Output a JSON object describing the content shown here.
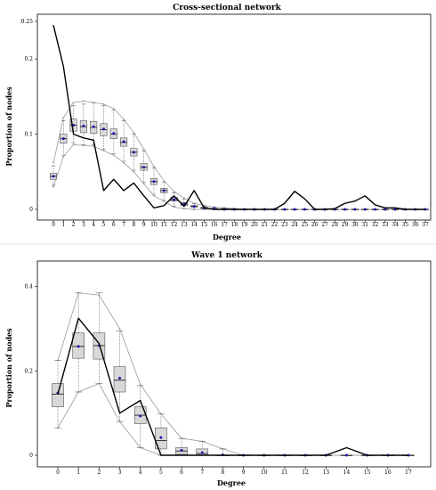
{
  "chart_data": [
    {
      "type": "box",
      "title": "Cross-sectional network",
      "xlabel": "Degree",
      "ylabel": "Proportion of nodes",
      "ylim": [
        0,
        0.25
      ],
      "yticks": [
        0,
        0.1,
        0.2,
        0.25
      ],
      "ytick_labels": [
        "0",
        "0.1",
        "0.2",
        "0.25"
      ],
      "categories": [
        "0",
        "1",
        "2",
        "3",
        "4",
        "5",
        "6",
        "7",
        "8",
        "9",
        "10",
        "11",
        "12",
        "13",
        "14",
        "15",
        "16",
        "17",
        "18",
        "19",
        "20",
        "21",
        "22",
        "23",
        "24",
        "25",
        "26",
        "27",
        "28",
        "29",
        "30",
        "31",
        "32",
        "33",
        "34",
        "35",
        "36",
        "37"
      ],
      "boxes": [
        {
          "q1": 0.04,
          "median": 0.044,
          "q3": 0.048,
          "mean": 0.044,
          "lo": 0.032,
          "hi": 0.058
        },
        {
          "q1": 0.088,
          "median": 0.094,
          "q3": 0.1,
          "mean": 0.094,
          "lo": 0.072,
          "hi": 0.118
        },
        {
          "q1": 0.104,
          "median": 0.112,
          "q3": 0.12,
          "mean": 0.112,
          "lo": 0.088,
          "hi": 0.138
        },
        {
          "q1": 0.102,
          "median": 0.11,
          "q3": 0.118,
          "mean": 0.111,
          "lo": 0.086,
          "hi": 0.14
        },
        {
          "q1": 0.101,
          "median": 0.109,
          "q3": 0.117,
          "mean": 0.11,
          "lo": 0.086,
          "hi": 0.142
        },
        {
          "q1": 0.098,
          "median": 0.106,
          "q3": 0.114,
          "mean": 0.107,
          "lo": 0.08,
          "hi": 0.138
        },
        {
          "q1": 0.094,
          "median": 0.1,
          "q3": 0.107,
          "mean": 0.101,
          "lo": 0.074,
          "hi": 0.132
        },
        {
          "q1": 0.084,
          "median": 0.089,
          "q3": 0.095,
          "mean": 0.09,
          "lo": 0.064,
          "hi": 0.118
        },
        {
          "q1": 0.071,
          "median": 0.076,
          "q3": 0.081,
          "mean": 0.076,
          "lo": 0.052,
          "hi": 0.1
        },
        {
          "q1": 0.052,
          "median": 0.056,
          "q3": 0.061,
          "mean": 0.056,
          "lo": 0.036,
          "hi": 0.078
        },
        {
          "q1": 0.033,
          "median": 0.037,
          "q3": 0.041,
          "mean": 0.037,
          "lo": 0.02,
          "hi": 0.055
        },
        {
          "q1": 0.022,
          "median": 0.025,
          "q3": 0.028,
          "mean": 0.025,
          "lo": 0.012,
          "hi": 0.036
        },
        {
          "q1": 0.011,
          "median": 0.013,
          "q3": 0.016,
          "mean": 0.013,
          "lo": 0.004,
          "hi": 0.022
        },
        {
          "q1": 0.005,
          "median": 0.007,
          "q3": 0.009,
          "mean": 0.007,
          "lo": 0.001,
          "hi": 0.014
        },
        {
          "q1": 0.003,
          "median": 0.004,
          "q3": 0.005,
          "mean": 0.004,
          "lo": 0.0,
          "hi": 0.008
        },
        {
          "q1": 0.001,
          "median": 0.002,
          "q3": 0.003,
          "mean": 0.002,
          "lo": 0.0,
          "hi": 0.005
        },
        {
          "q1": 0.0,
          "median": 0.001,
          "q3": 0.001,
          "mean": 0.001,
          "lo": 0.0,
          "hi": 0.003
        },
        {
          "q1": 0.0,
          "median": 0.0,
          "q3": 0.001,
          "mean": 0.0,
          "lo": 0.0,
          "hi": 0.002
        },
        {
          "q1": 0.0,
          "median": 0.0,
          "q3": 0.0,
          "mean": 0.0,
          "lo": 0.0,
          "hi": 0.001
        },
        {
          "q1": 0.0,
          "median": 0.0,
          "q3": 0.0,
          "mean": 0.0,
          "lo": 0.0,
          "hi": 0.0
        },
        {
          "q1": 0.0,
          "median": 0.0,
          "q3": 0.0,
          "mean": 0.0,
          "lo": 0.0,
          "hi": 0.0
        },
        {
          "q1": 0.0,
          "median": 0.0,
          "q3": 0.0,
          "mean": 0.0,
          "lo": 0.0,
          "hi": 0.0
        },
        {
          "q1": 0.0,
          "median": 0.0,
          "q3": 0.0,
          "mean": 0.0,
          "lo": 0.0,
          "hi": 0.0
        },
        {
          "q1": 0.0,
          "median": 0.0,
          "q3": 0.0,
          "mean": 0.0,
          "lo": 0.0,
          "hi": 0.0
        },
        {
          "q1": 0.0,
          "median": 0.0,
          "q3": 0.0,
          "mean": 0.0,
          "lo": 0.0,
          "hi": 0.0
        },
        {
          "q1": 0.0,
          "median": 0.0,
          "q3": 0.0,
          "mean": 0.0,
          "lo": 0.0,
          "hi": 0.0
        },
        {
          "q1": 0.0,
          "median": 0.0,
          "q3": 0.0,
          "mean": 0.0,
          "lo": 0.0,
          "hi": 0.0
        },
        {
          "q1": 0.0,
          "median": 0.0,
          "q3": 0.0,
          "mean": 0.0,
          "lo": 0.0,
          "hi": 0.0
        },
        {
          "q1": 0.0,
          "median": 0.0,
          "q3": 0.0,
          "mean": 0.0,
          "lo": 0.0,
          "hi": 0.0
        },
        {
          "q1": 0.0,
          "median": 0.0,
          "q3": 0.0,
          "mean": 0.0,
          "lo": 0.0,
          "hi": 0.0
        },
        {
          "q1": 0.0,
          "median": 0.0,
          "q3": 0.0,
          "mean": 0.0,
          "lo": 0.0,
          "hi": 0.0
        },
        {
          "q1": 0.0,
          "median": 0.0,
          "q3": 0.0,
          "mean": 0.0,
          "lo": 0.0,
          "hi": 0.0
        },
        {
          "q1": 0.0,
          "median": 0.0,
          "q3": 0.0,
          "mean": 0.0,
          "lo": 0.0,
          "hi": 0.0
        },
        {
          "q1": 0.0,
          "median": 0.0,
          "q3": 0.0,
          "mean": 0.0,
          "lo": 0.0,
          "hi": 0.0
        },
        {
          "q1": 0.0,
          "median": 0.0,
          "q3": 0.0,
          "mean": 0.0,
          "lo": 0.0,
          "hi": 0.0
        },
        {
          "q1": 0.0,
          "median": 0.0,
          "q3": 0.0,
          "mean": 0.0,
          "lo": 0.0,
          "hi": 0.0
        },
        {
          "q1": 0.0,
          "median": 0.0,
          "q3": 0.0,
          "mean": 0.0,
          "lo": 0.0,
          "hi": 0.0
        },
        {
          "q1": 0.0,
          "median": 0.0,
          "q3": 0.0,
          "mean": 0.0,
          "lo": 0.0,
          "hi": 0.0
        }
      ],
      "observed": [
        0.245,
        0.19,
        0.1,
        0.095,
        0.092,
        0.025,
        0.04,
        0.025,
        0.035,
        0.018,
        0.002,
        0.005,
        0.018,
        0.004,
        0.025,
        0.002,
        0,
        0,
        0,
        0,
        0,
        0,
        0,
        0.008,
        0.024,
        0.014,
        0,
        0,
        0.001,
        0.008,
        0.011,
        0.018,
        0.006,
        0.002,
        0.002,
        0,
        0,
        0
      ],
      "band_upper": [
        0.062,
        0.122,
        0.142,
        0.144,
        0.142,
        0.14,
        0.134,
        0.12,
        0.102,
        0.08,
        0.057,
        0.038,
        0.024,
        0.015,
        0.008,
        0.005,
        0.003,
        0.002,
        0.001,
        0,
        0,
        0,
        0,
        0,
        0,
        0,
        0,
        0,
        0,
        0,
        0,
        0,
        0,
        0,
        0,
        0,
        0,
        0
      ],
      "band_lower": [
        0.03,
        0.07,
        0.086,
        0.085,
        0.084,
        0.078,
        0.072,
        0.062,
        0.05,
        0.034,
        0.018,
        0.011,
        0.003,
        0.001,
        0,
        0,
        0,
        0,
        0,
        0,
        0,
        0,
        0,
        0,
        0,
        0,
        0,
        0,
        0,
        0,
        0,
        0,
        0,
        0,
        0,
        0,
        0,
        0
      ]
    },
    {
      "type": "box",
      "title": "Wave 1 network",
      "xlabel": "Degree",
      "ylabel": "Proportion of nodes",
      "ylim": [
        0,
        0.45
      ],
      "yticks": [
        0,
        0.2,
        0.4
      ],
      "ytick_labels": [
        "0",
        "0.2",
        "0.4"
      ],
      "categories": [
        "0",
        "1",
        "2",
        "3",
        "4",
        "5",
        "6",
        "7",
        "8",
        "9",
        "10",
        "11",
        "12",
        "13",
        "14",
        "15",
        "16",
        "17"
      ],
      "boxes": [
        {
          "q1": 0.115,
          "median": 0.145,
          "q3": 0.17,
          "mean": 0.148,
          "lo": 0.065,
          "hi": 0.225
        },
        {
          "q1": 0.23,
          "median": 0.258,
          "q3": 0.29,
          "mean": 0.258,
          "lo": 0.15,
          "hi": 0.385
        },
        {
          "q1": 0.228,
          "median": 0.26,
          "q3": 0.29,
          "mean": 0.26,
          "lo": 0.17,
          "hi": 0.385
        },
        {
          "q1": 0.15,
          "median": 0.178,
          "q3": 0.21,
          "mean": 0.183,
          "lo": 0.08,
          "hi": 0.295
        },
        {
          "q1": 0.075,
          "median": 0.095,
          "q3": 0.115,
          "mean": 0.093,
          "lo": 0.018,
          "hi": 0.165
        },
        {
          "q1": 0.015,
          "median": 0.035,
          "q3": 0.065,
          "mean": 0.042,
          "lo": 0.0,
          "hi": 0.098
        },
        {
          "q1": 0.002,
          "median": 0.01,
          "q3": 0.018,
          "mean": 0.012,
          "lo": 0.0,
          "hi": 0.04
        },
        {
          "q1": 0.0,
          "median": 0.004,
          "q3": 0.015,
          "mean": 0.006,
          "lo": 0.0,
          "hi": 0.033
        },
        {
          "q1": 0.0,
          "median": 0.0,
          "q3": 0.0,
          "mean": 0.001,
          "lo": 0.0,
          "hi": 0.015
        },
        {
          "q1": 0.0,
          "median": 0.0,
          "q3": 0.0,
          "mean": 0.0,
          "lo": 0.0,
          "hi": 0.0
        },
        {
          "q1": 0.0,
          "median": 0.0,
          "q3": 0.0,
          "mean": 0.0,
          "lo": 0.0,
          "hi": 0.0
        },
        {
          "q1": 0.0,
          "median": 0.0,
          "q3": 0.0,
          "mean": 0.0,
          "lo": 0.0,
          "hi": 0.0
        },
        {
          "q1": 0.0,
          "median": 0.0,
          "q3": 0.0,
          "mean": 0.0,
          "lo": 0.0,
          "hi": 0.0
        },
        {
          "q1": 0.0,
          "median": 0.0,
          "q3": 0.0,
          "mean": 0.0,
          "lo": 0.0,
          "hi": 0.0
        },
        {
          "q1": 0.0,
          "median": 0.0,
          "q3": 0.0,
          "mean": 0.0,
          "lo": 0.0,
          "hi": 0.0
        },
        {
          "q1": 0.0,
          "median": 0.0,
          "q3": 0.0,
          "mean": 0.0,
          "lo": 0.0,
          "hi": 0.0
        },
        {
          "q1": 0.0,
          "median": 0.0,
          "q3": 0.0,
          "mean": 0.0,
          "lo": 0.0,
          "hi": 0.0
        },
        {
          "q1": 0.0,
          "median": 0.0,
          "q3": 0.0,
          "mean": 0.0,
          "lo": 0.0,
          "hi": 0.0
        }
      ],
      "observed": [
        0.145,
        0.325,
        0.265,
        0.1,
        0.13,
        0.0,
        0.0,
        0.0,
        0.0,
        0.0,
        0.0,
        0.0,
        0.0,
        0.0,
        0.018,
        0.0,
        0.0,
        0.0
      ],
      "band_upper": [
        0.225,
        0.385,
        0.38,
        0.3,
        0.168,
        0.098,
        0.04,
        0.033,
        0.015,
        0,
        0,
        0,
        0,
        0,
        0,
        0,
        0,
        0
      ],
      "band_lower": [
        0.065,
        0.15,
        0.17,
        0.08,
        0.018,
        0.0,
        0,
        0,
        0,
        0,
        0,
        0,
        0,
        0,
        0,
        0,
        0,
        0
      ]
    }
  ],
  "colors": {
    "box_fill": "#d8d8d8",
    "box_stroke": "#555555",
    "mean_marker": "#1a1aa8",
    "observed_line": "#000000",
    "band_line": "#9a9a9a",
    "whisker": "#666666"
  }
}
